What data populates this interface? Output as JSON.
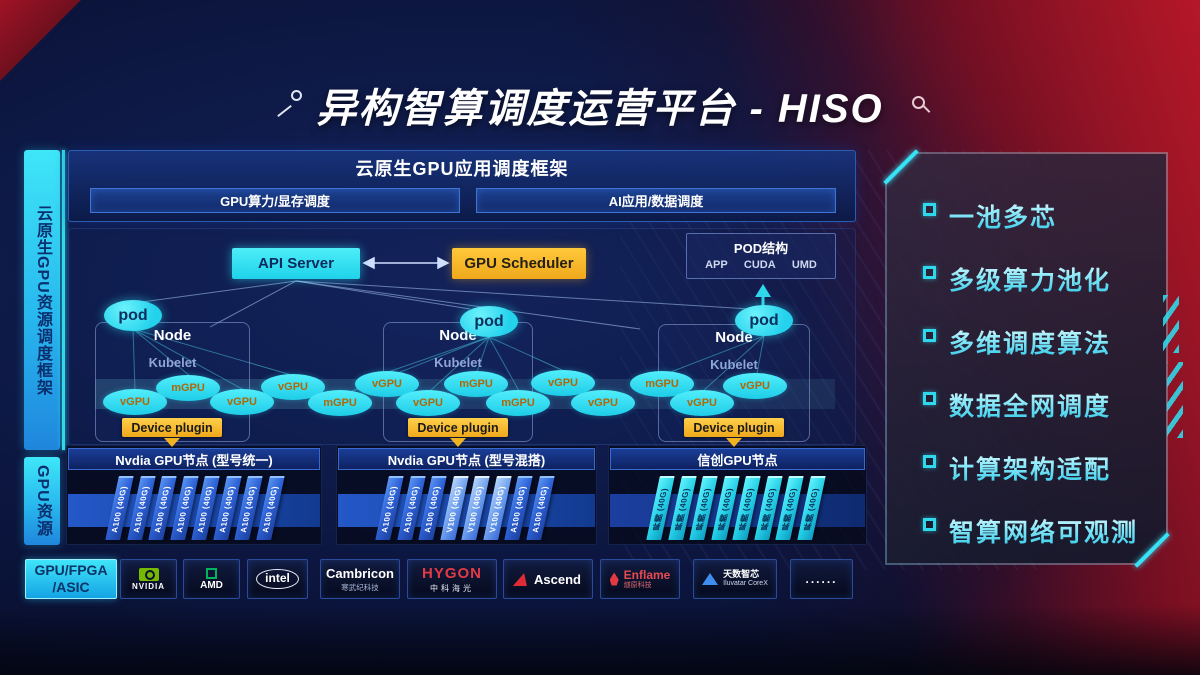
{
  "title": "异构智算调度运营平台 - HISO",
  "left_rails": {
    "top": "云原生GPU资源调度框架",
    "bottom": "GPU资源"
  },
  "framework": {
    "header": "云原生GPU应用调度框架",
    "lanes": [
      "GPU算力/显存调度",
      "AI应用/数据调度"
    ]
  },
  "scheduler": {
    "api_server": "API Server",
    "gpu_scheduler": "GPU Scheduler",
    "pod_box": {
      "title": "POD结构",
      "items": [
        "APP",
        "CUDA",
        "UMD"
      ]
    }
  },
  "nodes": [
    {
      "pod": "pod",
      "name": "Node",
      "agent": "Kubelet"
    },
    {
      "pod": "pod",
      "name": "Node",
      "agent": "Kubelet"
    },
    {
      "pod": "pod",
      "name": "Node",
      "agent": "Kubelet"
    }
  ],
  "gpu_ellipses": [
    "vGPU",
    "mGPU",
    "vGPU",
    "vGPU",
    "mGPU",
    "vGPU",
    "vGPU",
    "mGPU",
    "mGPU",
    "vGPU",
    "vGPU",
    "mGPU",
    "vGPU",
    "vGPU"
  ],
  "device_plugin_label": "Device plugin",
  "gpu_rows": [
    {
      "label": "Nvdia GPU节点 (型号统一)",
      "cards": [
        {
          "label": "A100 (40G)",
          "variant": "blue"
        },
        {
          "label": "A100 (40G)",
          "variant": "blue"
        },
        {
          "label": "A100 (40G)",
          "variant": "blue"
        },
        {
          "label": "A100 (40G)",
          "variant": "blue"
        },
        {
          "label": "A100 (40G)",
          "variant": "blue"
        },
        {
          "label": "A100 (40G)",
          "variant": "blue"
        },
        {
          "label": "A100 (40G)",
          "variant": "blue"
        },
        {
          "label": "A100 (40G)",
          "variant": "blue"
        }
      ]
    },
    {
      "label": "Nvdia GPU节点 (型号混搭)",
      "cards": [
        {
          "label": "A100 (40G)",
          "variant": "blue"
        },
        {
          "label": "A100 (40G)",
          "variant": "blue"
        },
        {
          "label": "A100 (40G)",
          "variant": "blue"
        },
        {
          "label": "V100 (40G)",
          "variant": "light"
        },
        {
          "label": "V100 (40G)",
          "variant": "light"
        },
        {
          "label": "V100 (40G)",
          "variant": "light"
        },
        {
          "label": "A100 (40G)",
          "variant": "blue"
        },
        {
          "label": "A100 (40G)",
          "variant": "blue"
        }
      ]
    },
    {
      "label": "信创GPU节点",
      "cards": [
        {
          "label": "昇腾 (40G)",
          "variant": "cyan"
        },
        {
          "label": "昇腾 (40G)",
          "variant": "cyan"
        },
        {
          "label": "昇腾 (40G)",
          "variant": "cyan"
        },
        {
          "label": "昇腾 (40G)",
          "variant": "cyan"
        },
        {
          "label": "昇腾 (40G)",
          "variant": "cyan"
        },
        {
          "label": "昇腾 (40G)",
          "variant": "cyan"
        },
        {
          "label": "昇腾 (40G)",
          "variant": "cyan"
        },
        {
          "label": "昇腾 (40G)",
          "variant": "cyan"
        }
      ]
    }
  ],
  "hardware_bar": {
    "category": {
      "line1": "GPU/FPGA",
      "line2": "/ASIC"
    },
    "vendors": [
      {
        "name": "NVIDIA"
      },
      {
        "name": "AMD"
      },
      {
        "name": "intel"
      },
      {
        "name": "Cambricon",
        "sub": "寒武纪科技"
      },
      {
        "name": "HYGON",
        "sub": "中科海光"
      },
      {
        "name": "Ascend"
      },
      {
        "name": "Enflame",
        "sub": "燧原科技"
      },
      {
        "name": "天数智芯",
        "sub": "Iluvatar CoreX"
      },
      {
        "name": "......"
      }
    ]
  },
  "features": [
    "一池多芯",
    "多级算力池化",
    "多维调度算法",
    "数据全网调度",
    "计算架构适配",
    "智算网络可观测"
  ],
  "colors": {
    "accent_cyan": "#2FE0F5",
    "accent_yellow": "#F2B320",
    "card_blue": "#2E62D6",
    "panel_red": "#951425",
    "nvidia_green": "#76B900",
    "amd_green": "#00B460",
    "hygon_red": "#E23A44",
    "iluvatar_blue": "#3E8EF0"
  }
}
